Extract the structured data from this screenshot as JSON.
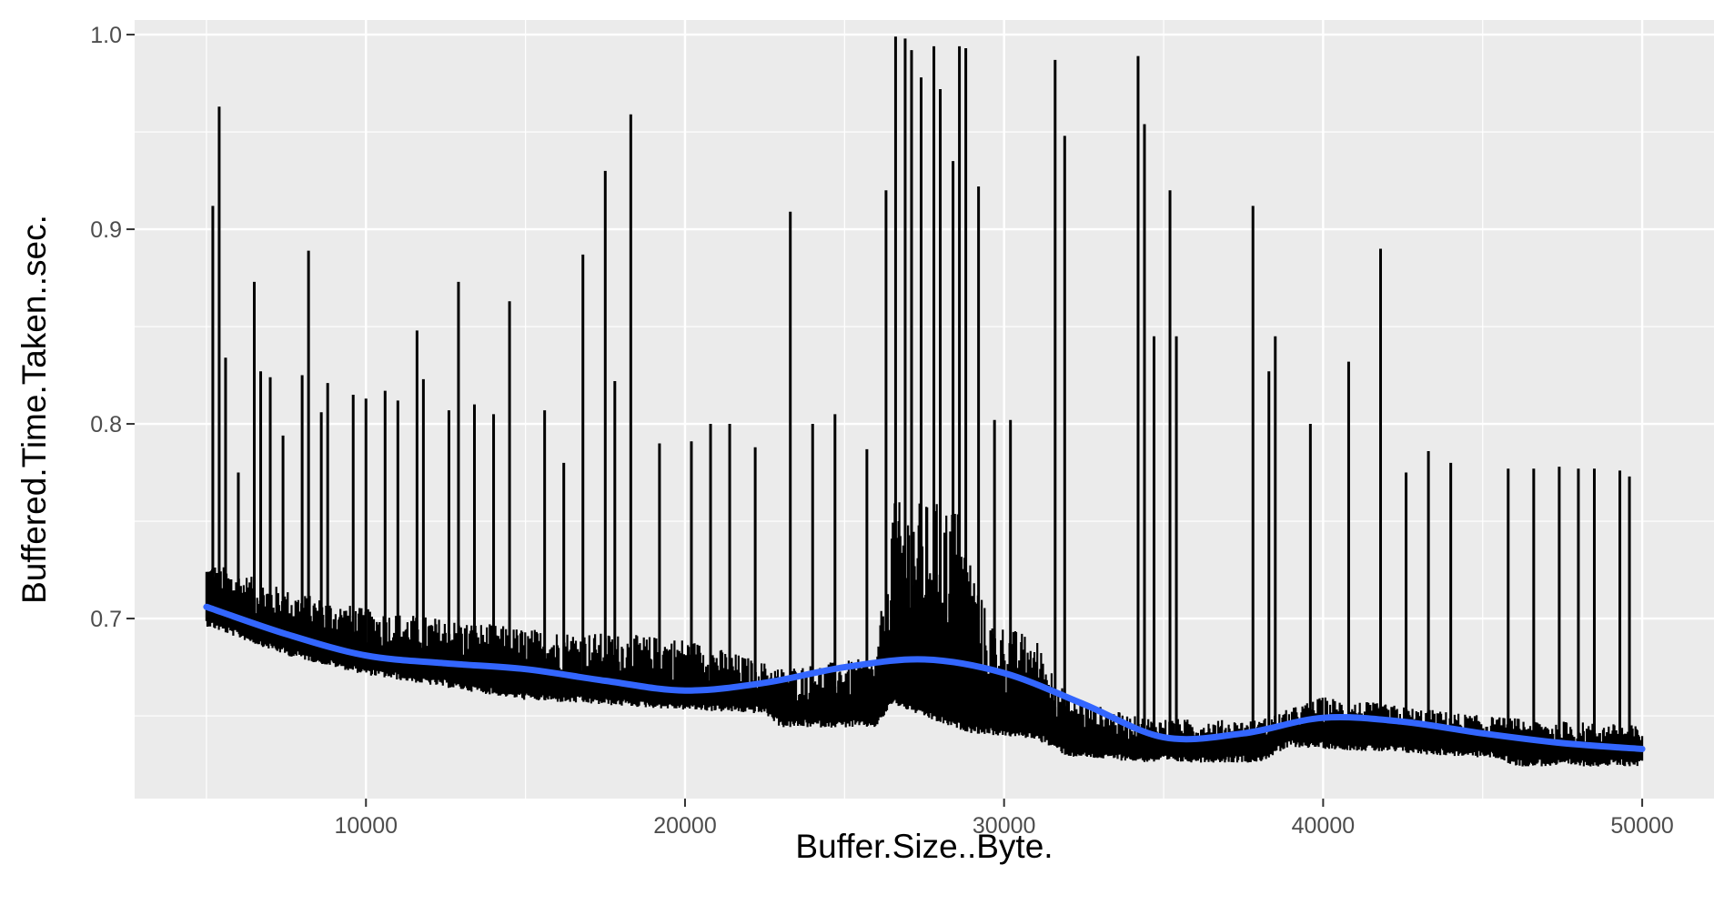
{
  "chart_data": {
    "type": "line",
    "title": "",
    "xlabel": "Buffer.Size..Byte.",
    "ylabel": "Buffered.Time.Taken..sec.",
    "xlim": [
      2750,
      52250
    ],
    "ylim": [
      0.6075,
      1.0075
    ],
    "x_ticks": [
      10000,
      20000,
      30000,
      40000,
      50000
    ],
    "x_tick_labels": [
      "10000",
      "20000",
      "30000",
      "40000",
      "50000"
    ],
    "y_ticks": [
      0.7,
      0.8,
      0.9,
      1.0
    ],
    "y_tick_labels": [
      "0.7",
      "0.8",
      "0.9",
      "1.0"
    ],
    "grid": true,
    "legend": "none",
    "series": [
      {
        "kind": "raw",
        "color": "#000000",
        "x_range": [
          5000,
          50000
        ],
        "baseline": [
          [
            5000,
            0.7
          ],
          [
            7500,
            0.685
          ],
          [
            10000,
            0.675
          ],
          [
            15000,
            0.662
          ],
          [
            20000,
            0.657
          ],
          [
            22500,
            0.655
          ],
          [
            23000,
            0.648
          ],
          [
            26000,
            0.648
          ],
          [
            26500,
            0.66
          ],
          [
            28000,
            0.65
          ],
          [
            29000,
            0.645
          ],
          [
            31000,
            0.642
          ],
          [
            32000,
            0.633
          ],
          [
            34500,
            0.63
          ],
          [
            38000,
            0.63
          ],
          [
            39000,
            0.638
          ],
          [
            45500,
            0.632
          ],
          [
            46000,
            0.628
          ],
          [
            50000,
            0.628
          ]
        ],
        "band_top": [
          [
            5000,
            0.73
          ],
          [
            7500,
            0.715
          ],
          [
            10000,
            0.705
          ],
          [
            15000,
            0.695
          ],
          [
            20000,
            0.69
          ],
          [
            23000,
            0.675
          ],
          [
            26000,
            0.68
          ],
          [
            26500,
            0.76
          ],
          [
            28500,
            0.76
          ],
          [
            29500,
            0.7
          ],
          [
            31000,
            0.69
          ],
          [
            32000,
            0.66
          ],
          [
            34000,
            0.65
          ],
          [
            36000,
            0.648
          ],
          [
            38000,
            0.648
          ],
          [
            40000,
            0.66
          ],
          [
            45000,
            0.65
          ],
          [
            50000,
            0.645
          ]
        ],
        "spikes": [
          [
            5200,
            0.912
          ],
          [
            5400,
            0.963
          ],
          [
            5600,
            0.834
          ],
          [
            6000,
            0.775
          ],
          [
            6500,
            0.873
          ],
          [
            6700,
            0.827
          ],
          [
            7000,
            0.824
          ],
          [
            7400,
            0.794
          ],
          [
            8000,
            0.825
          ],
          [
            8200,
            0.889
          ],
          [
            8600,
            0.806
          ],
          [
            8800,
            0.821
          ],
          [
            9600,
            0.815
          ],
          [
            10000,
            0.813
          ],
          [
            10600,
            0.817
          ],
          [
            11000,
            0.812
          ],
          [
            11600,
            0.848
          ],
          [
            11800,
            0.823
          ],
          [
            12600,
            0.807
          ],
          [
            12900,
            0.873
          ],
          [
            13400,
            0.81
          ],
          [
            14000,
            0.805
          ],
          [
            14500,
            0.863
          ],
          [
            15600,
            0.807
          ],
          [
            16200,
            0.78
          ],
          [
            16800,
            0.887
          ],
          [
            17500,
            0.93
          ],
          [
            17800,
            0.822
          ],
          [
            18300,
            0.959
          ],
          [
            19200,
            0.79
          ],
          [
            20200,
            0.791
          ],
          [
            20800,
            0.8
          ],
          [
            21400,
            0.8
          ],
          [
            22200,
            0.788
          ],
          [
            23300,
            0.909
          ],
          [
            24000,
            0.8
          ],
          [
            24700,
            0.805
          ],
          [
            25700,
            0.787
          ],
          [
            26300,
            0.92
          ],
          [
            26600,
            0.999
          ],
          [
            26900,
            0.998
          ],
          [
            27100,
            0.992
          ],
          [
            27400,
            0.978
          ],
          [
            27800,
            0.994
          ],
          [
            28000,
            0.972
          ],
          [
            28400,
            0.935
          ],
          [
            28600,
            0.994
          ],
          [
            28800,
            0.993
          ],
          [
            29200,
            0.922
          ],
          [
            29700,
            0.802
          ],
          [
            30200,
            0.802
          ],
          [
            31600,
            0.987
          ],
          [
            31900,
            0.948
          ],
          [
            34200,
            0.989
          ],
          [
            34400,
            0.954
          ],
          [
            34700,
            0.845
          ],
          [
            35200,
            0.92
          ],
          [
            35400,
            0.845
          ],
          [
            37800,
            0.912
          ],
          [
            38500,
            0.845
          ],
          [
            38300,
            0.827
          ],
          [
            39600,
            0.8
          ],
          [
            40800,
            0.832
          ],
          [
            41800,
            0.89
          ],
          [
            42600,
            0.775
          ],
          [
            43300,
            0.786
          ],
          [
            44000,
            0.78
          ],
          [
            45800,
            0.777
          ],
          [
            46600,
            0.777
          ],
          [
            47400,
            0.778
          ],
          [
            48000,
            0.777
          ],
          [
            48500,
            0.777
          ],
          [
            49300,
            0.776
          ],
          [
            49600,
            0.773
          ]
        ]
      },
      {
        "kind": "smooth",
        "color": "#3366FF",
        "x": [
          5000,
          7500,
          10000,
          12500,
          15000,
          17500,
          20000,
          22500,
          25000,
          27500,
          30000,
          32500,
          35000,
          37500,
          40000,
          42500,
          45000,
          47500,
          50000
        ],
        "y": [
          0.706,
          0.692,
          0.681,
          0.677,
          0.674,
          0.668,
          0.663,
          0.667,
          0.675,
          0.679,
          0.672,
          0.656,
          0.639,
          0.641,
          0.649,
          0.647,
          0.641,
          0.636,
          0.633
        ]
      }
    ]
  }
}
